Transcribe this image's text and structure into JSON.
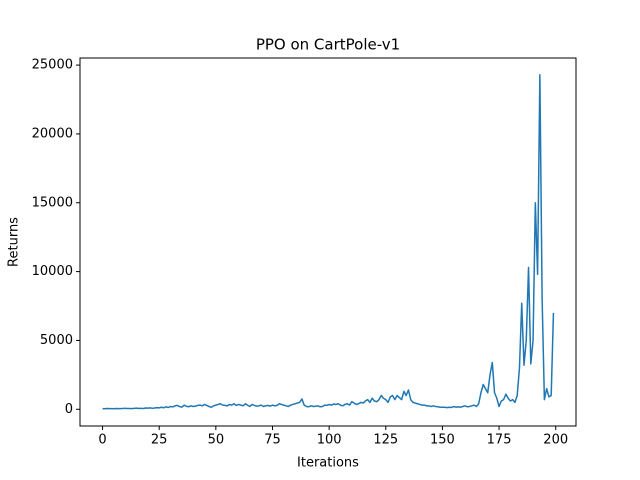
{
  "chart_data": {
    "type": "line",
    "title": "PPO on CartPole-v1",
    "x_label": "Iterations",
    "y_label": "Returns",
    "x": [
      0,
      1,
      2,
      3,
      4,
      5,
      6,
      7,
      8,
      9,
      10,
      11,
      12,
      13,
      14,
      15,
      16,
      17,
      18,
      19,
      20,
      21,
      22,
      23,
      24,
      25,
      26,
      27,
      28,
      29,
      30,
      31,
      32,
      33,
      34,
      35,
      36,
      37,
      38,
      39,
      40,
      41,
      42,
      43,
      44,
      45,
      46,
      47,
      48,
      49,
      50,
      51,
      52,
      53,
      54,
      55,
      56,
      57,
      58,
      59,
      60,
      61,
      62,
      63,
      64,
      65,
      66,
      67,
      68,
      69,
      70,
      71,
      72,
      73,
      74,
      75,
      76,
      77,
      78,
      79,
      80,
      81,
      82,
      83,
      84,
      85,
      86,
      87,
      88,
      89,
      90,
      91,
      92,
      93,
      94,
      95,
      96,
      97,
      98,
      99,
      100,
      101,
      102,
      103,
      104,
      105,
      106,
      107,
      108,
      109,
      110,
      111,
      112,
      113,
      114,
      115,
      116,
      117,
      118,
      119,
      120,
      121,
      122,
      123,
      124,
      125,
      126,
      127,
      128,
      129,
      130,
      131,
      132,
      133,
      134,
      135,
      136,
      137,
      138,
      139,
      140,
      141,
      142,
      143,
      144,
      145,
      146,
      147,
      148,
      149,
      150,
      151,
      152,
      153,
      154,
      155,
      156,
      157,
      158,
      159,
      160,
      161,
      162,
      163,
      164,
      165,
      166,
      167,
      168,
      169,
      170,
      171,
      172,
      173,
      174,
      175,
      176,
      177,
      178,
      179,
      180,
      181,
      182,
      183,
      184,
      185,
      186,
      187,
      188,
      189,
      190,
      191,
      192,
      193,
      194,
      195,
      196,
      197,
      198,
      199
    ],
    "series": [
      {
        "color": "#1f77b4",
        "values": [
          50,
          40,
          60,
          45,
          50,
          40,
          55,
          50,
          45,
          60,
          70,
          55,
          60,
          50,
          65,
          80,
          60,
          70,
          55,
          90,
          80,
          100,
          70,
          90,
          120,
          100,
          150,
          110,
          180,
          130,
          200,
          170,
          250,
          280,
          200,
          150,
          300,
          220,
          180,
          250,
          200,
          230,
          280,
          300,
          250,
          350,
          280,
          200,
          150,
          250,
          300,
          350,
          400,
          300,
          280,
          250,
          350,
          300,
          400,
          280,
          350,
          300,
          250,
          400,
          300,
          200,
          350,
          280,
          230,
          250,
          300,
          200,
          250,
          280,
          230,
          300,
          250,
          280,
          400,
          350,
          300,
          250,
          200,
          300,
          350,
          400,
          450,
          500,
          750,
          300,
          200,
          180,
          250,
          200,
          220,
          250,
          180,
          200,
          300,
          280,
          350,
          300,
          380,
          350,
          400,
          300,
          250,
          350,
          400,
          300,
          550,
          450,
          350,
          400,
          500,
          450,
          600,
          700,
          500,
          800,
          600,
          550,
          700,
          1000,
          800,
          700,
          500,
          900,
          1000,
          700,
          1000,
          850,
          700,
          1300,
          1000,
          1400,
          700,
          500,
          450,
          400,
          350,
          300,
          300,
          250,
          250,
          200,
          250,
          200,
          180,
          150,
          150,
          150,
          120,
          150,
          130,
          200,
          150,
          180,
          150,
          200,
          250,
          180,
          200,
          250,
          300,
          200,
          400,
          1200,
          1800,
          1500,
          1200,
          2500,
          3400,
          1200,
          800,
          200,
          600,
          700,
          1100,
          800,
          600,
          700,
          500,
          1000,
          3000,
          7700,
          3200,
          5000,
          10300,
          3300,
          5000,
          15000,
          9800,
          24300,
          8000,
          700,
          1500,
          900,
          1000,
          7000
        ]
      }
    ],
    "xlim": [
      -9.95,
      208.95
    ],
    "xticks": [
      0,
      25,
      50,
      75,
      100,
      125,
      150,
      175,
      200
    ],
    "ylim": [
      -1215,
      25515
    ],
    "yticks": [
      0,
      5000,
      10000,
      15000,
      20000,
      25000
    ]
  }
}
